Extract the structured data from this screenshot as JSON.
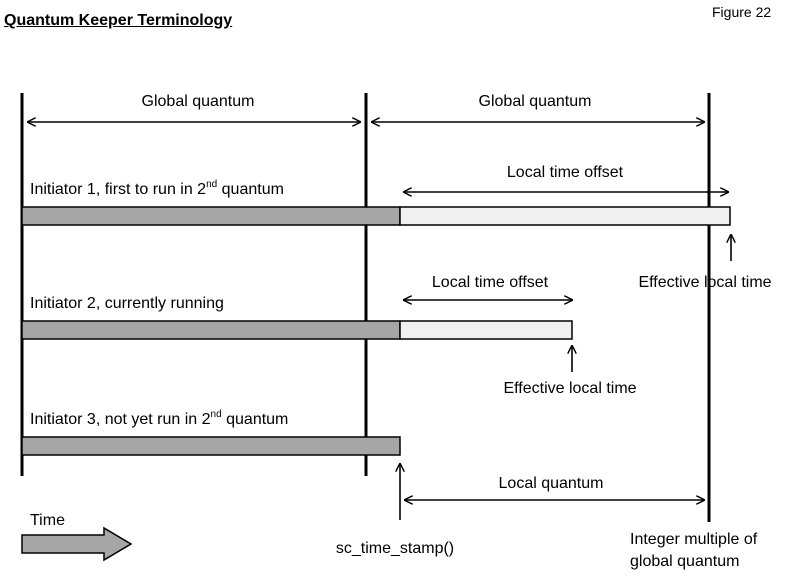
{
  "title": "Quantum Keeper Terminology",
  "figure_label": "Figure 22",
  "labels": {
    "global_quantum_1": "Global quantum",
    "global_quantum_2": "Global quantum",
    "local_time_offset_1": "Local time offset",
    "local_time_offset_2": "Local time offset",
    "effective_local_time_1": "Effective local time",
    "effective_local_time_2": "Effective local time",
    "local_quantum": "Local quantum",
    "time": "Time",
    "sc_time_stamp": "sc_time_stamp()",
    "integer_multiple_line1": "Integer multiple of",
    "integer_multiple_line2": "global quantum"
  },
  "initiators": [
    {
      "prefix": "Initiator 1, first to run in 2",
      "sup": "nd",
      "suffix": " quantum"
    },
    {
      "prefix": "Initiator 2, currently running",
      "sup": "",
      "suffix": ""
    },
    {
      "prefix": "Initiator 3, not yet run in 2",
      "sup": "nd",
      "suffix": " quantum"
    }
  ],
  "colors": {
    "elapsed_bar": "#a6a6a6",
    "offset_bar": "#f0f0f0",
    "time_arrow": "#a6a6a6",
    "stroke": "#000000"
  }
}
